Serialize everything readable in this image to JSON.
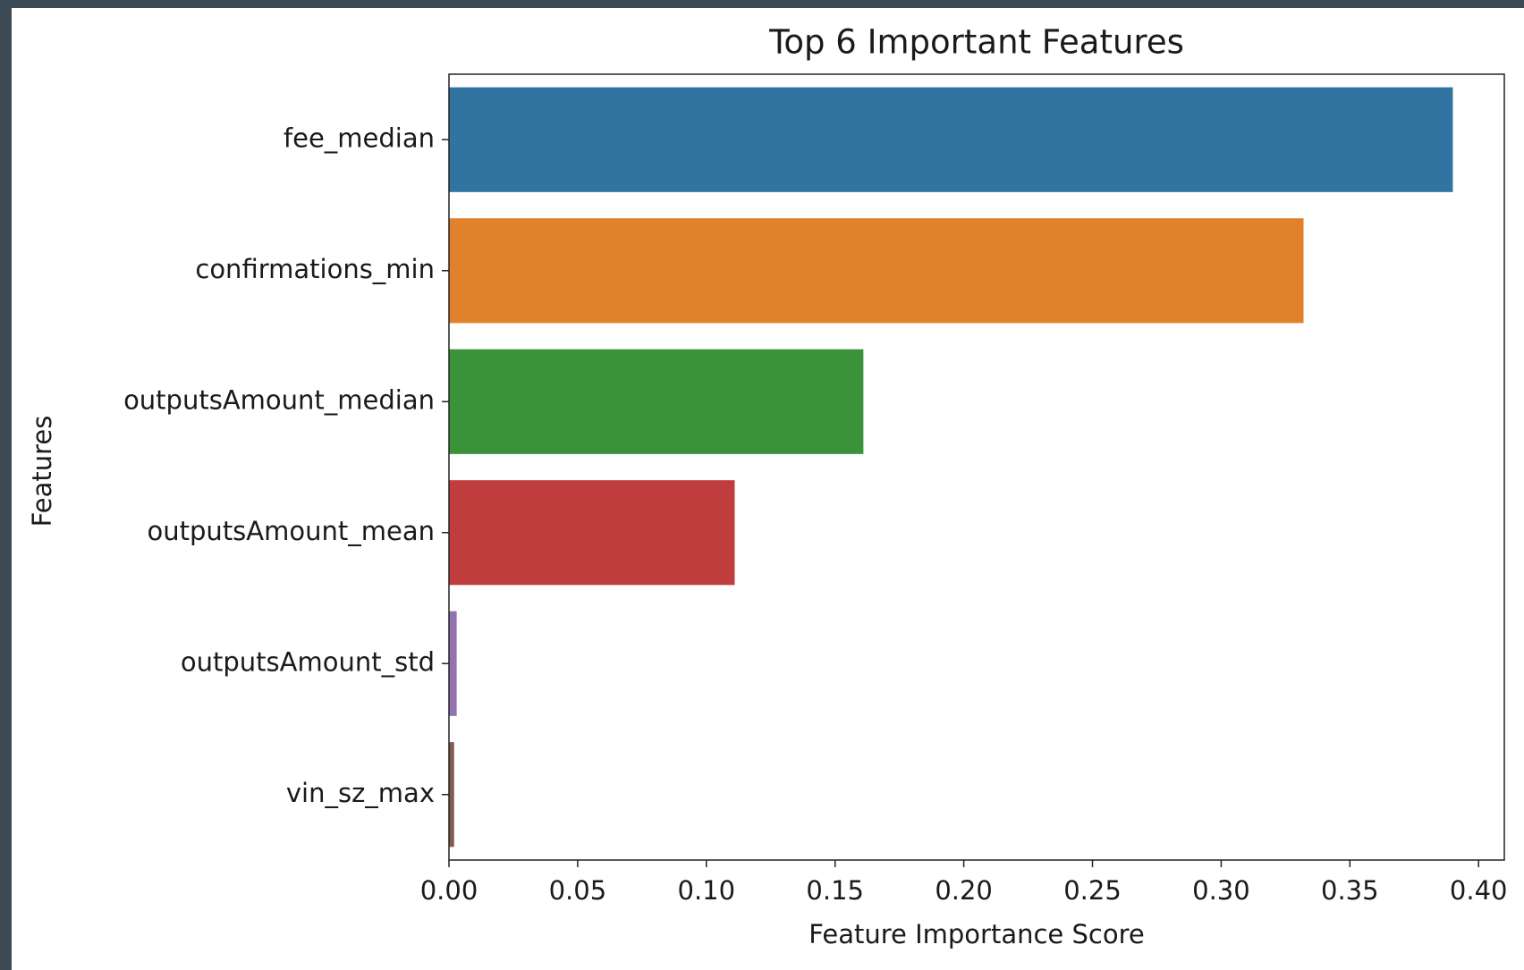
{
  "chart_data": {
    "type": "hbar",
    "title": "Top 6 Important Features",
    "xlabel": "Feature Importance Score",
    "ylabel": "Features",
    "categories": [
      "fee_median",
      "confirmations_min",
      "outputsAmount_median",
      "outputsAmount_mean",
      "outputsAmount_std",
      "vin_sz_max"
    ],
    "values": [
      0.39,
      0.332,
      0.161,
      0.111,
      0.003,
      0.002
    ],
    "colors": [
      "#3274a1",
      "#e1812c",
      "#3a923a",
      "#c03d3e",
      "#9372b2",
      "#845b53"
    ],
    "xlim": [
      0,
      0.41
    ],
    "xticks": [
      {
        "value": 0,
        "label": "0.00"
      },
      {
        "value": 0.05,
        "label": "0.05"
      },
      {
        "value": 0.1,
        "label": "0.10"
      },
      {
        "value": 0.15,
        "label": "0.15"
      },
      {
        "value": 0.2,
        "label": "0.20"
      },
      {
        "value": 0.25,
        "label": "0.25"
      },
      {
        "value": 0.3,
        "label": "0.30"
      },
      {
        "value": 0.35,
        "label": "0.35"
      },
      {
        "value": 0.4,
        "label": "0.40"
      }
    ]
  }
}
